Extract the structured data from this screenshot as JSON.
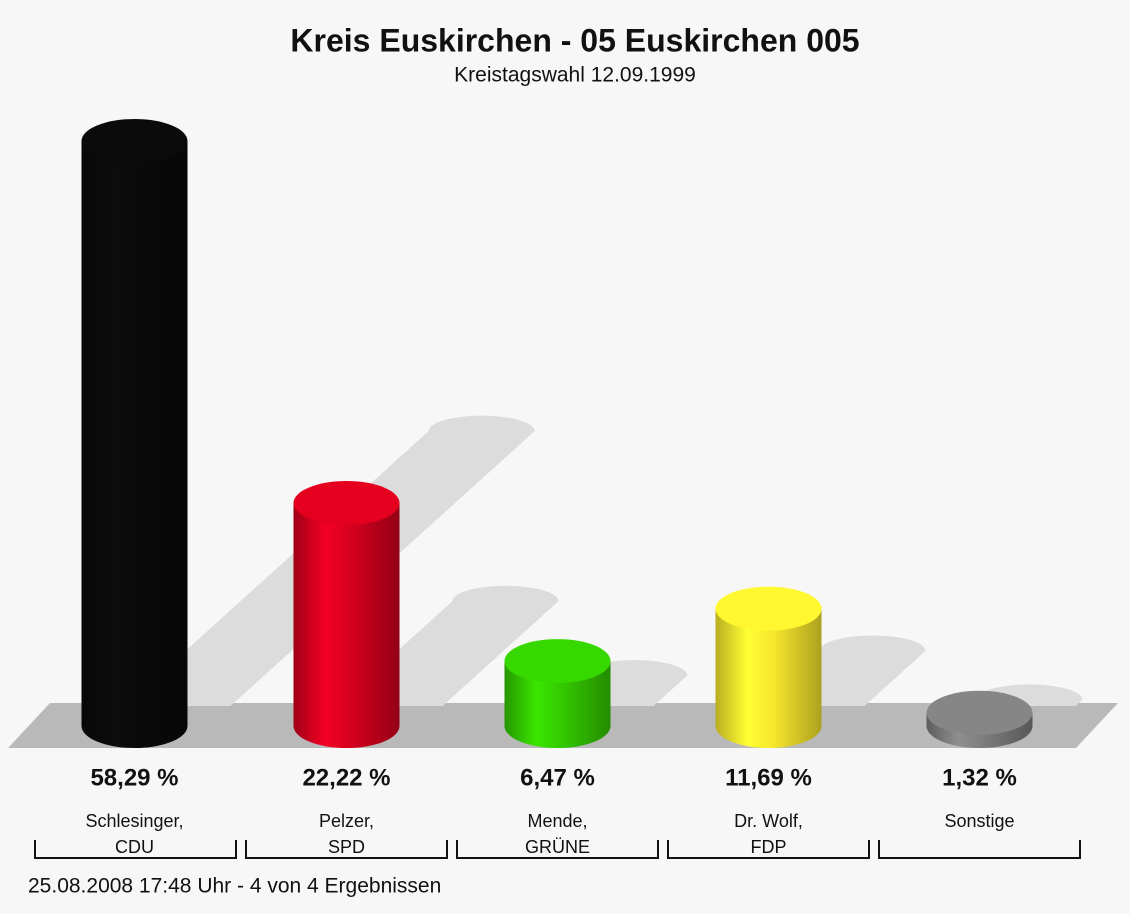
{
  "chart_data": {
    "type": "bar",
    "title": "Kreis Euskirchen - 05 Euskirchen 005",
    "subtitle": "Kreistagswahl 12.09.1999",
    "categories": [
      [
        "Schlesinger,",
        "CDU"
      ],
      [
        "Pelzer,",
        "SPD"
      ],
      [
        "Mende,",
        "GRÜNE"
      ],
      [
        "Dr. Wolf,",
        "FDP"
      ],
      [
        "Sonstige"
      ]
    ],
    "values": [
      58.29,
      22.22,
      6.47,
      11.69,
      1.32
    ],
    "value_labels": [
      "58,29 %",
      "22,22 %",
      "6,47 %",
      "11,69 %",
      "1,32 %"
    ],
    "colors": [
      "#0a0a0a",
      "#d4001e",
      "#33c800",
      "#f6e62c",
      "#7c7c7c"
    ],
    "footer": "25.08.2008 17:48 Uhr - 4 von 4 Ergebnissen"
  }
}
